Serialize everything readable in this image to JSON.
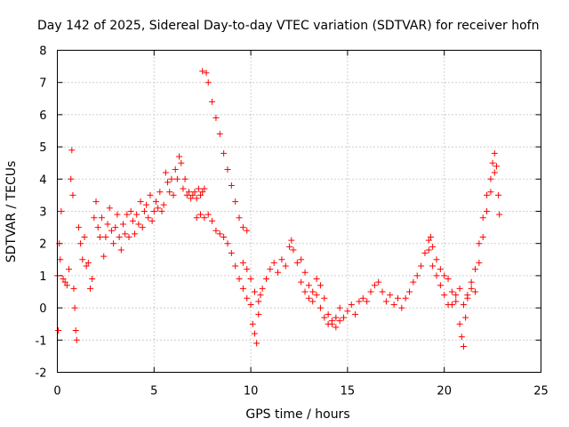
{
  "chart_data": {
    "type": "scatter",
    "title": "Day 142 of 2025, Sidereal Day-to-day VTEC variation (SDTVAR) for receiver hofn",
    "xlabel": "GPS time / hours",
    "ylabel": "SDTVAR / TECUs",
    "xlim": [
      0,
      25
    ],
    "ylim": [
      -2,
      8
    ],
    "xticks": [
      0,
      5,
      10,
      15,
      20,
      25
    ],
    "yticks": [
      -2,
      -1,
      0,
      1,
      2,
      3,
      4,
      5,
      6,
      7,
      8
    ],
    "xtick_labels": [
      "0",
      "5",
      "10",
      "15",
      "20",
      "25"
    ],
    "ytick_labels": [
      "-2",
      "-1",
      "0",
      "1",
      "2",
      "3",
      "4",
      "5",
      "6",
      "7",
      "8"
    ],
    "grid": true,
    "marker": "+",
    "color": "#ff0000",
    "series": [
      {
        "name": "SDTVAR",
        "points": [
          [
            0.0,
            1.0
          ],
          [
            0.05,
            -0.7
          ],
          [
            0.1,
            2.0
          ],
          [
            0.15,
            1.5
          ],
          [
            0.2,
            3.0
          ],
          [
            0.3,
            0.9
          ],
          [
            0.4,
            0.8
          ],
          [
            0.5,
            0.7
          ],
          [
            0.6,
            1.2
          ],
          [
            0.7,
            4.0
          ],
          [
            0.75,
            4.9
          ],
          [
            0.8,
            3.5
          ],
          [
            0.85,
            0.6
          ],
          [
            0.9,
            0.0
          ],
          [
            0.95,
            -0.7
          ],
          [
            1.0,
            -1.0
          ],
          [
            1.1,
            2.5
          ],
          [
            1.2,
            2.0
          ],
          [
            1.3,
            1.5
          ],
          [
            1.4,
            2.2
          ],
          [
            1.5,
            1.3
          ],
          [
            1.6,
            1.4
          ],
          [
            1.7,
            0.6
          ],
          [
            1.8,
            0.9
          ],
          [
            1.9,
            2.8
          ],
          [
            2.0,
            3.3
          ],
          [
            2.1,
            2.5
          ],
          [
            2.2,
            2.2
          ],
          [
            2.3,
            2.8
          ],
          [
            2.4,
            1.6
          ],
          [
            2.5,
            2.2
          ],
          [
            2.6,
            2.6
          ],
          [
            2.7,
            3.1
          ],
          [
            2.8,
            2.4
          ],
          [
            2.9,
            2.0
          ],
          [
            3.0,
            2.5
          ],
          [
            3.1,
            2.9
          ],
          [
            3.2,
            2.2
          ],
          [
            3.3,
            1.8
          ],
          [
            3.4,
            2.6
          ],
          [
            3.5,
            2.3
          ],
          [
            3.6,
            2.9
          ],
          [
            3.7,
            2.2
          ],
          [
            3.8,
            3.0
          ],
          [
            3.9,
            2.7
          ],
          [
            4.0,
            2.3
          ],
          [
            4.1,
            2.9
          ],
          [
            4.2,
            2.6
          ],
          [
            4.3,
            3.3
          ],
          [
            4.4,
            2.5
          ],
          [
            4.5,
            3.0
          ],
          [
            4.6,
            3.2
          ],
          [
            4.7,
            2.8
          ],
          [
            4.8,
            3.5
          ],
          [
            4.9,
            2.7
          ],
          [
            5.0,
            3.0
          ],
          [
            5.1,
            3.3
          ],
          [
            5.2,
            3.1
          ],
          [
            5.3,
            3.6
          ],
          [
            5.4,
            3.0
          ],
          [
            5.5,
            3.2
          ],
          [
            5.6,
            4.2
          ],
          [
            5.7,
            3.9
          ],
          [
            5.8,
            3.6
          ],
          [
            5.9,
            4.0
          ],
          [
            6.0,
            3.5
          ],
          [
            6.1,
            4.3
          ],
          [
            6.2,
            4.0
          ],
          [
            6.3,
            4.7
          ],
          [
            6.4,
            4.5
          ],
          [
            6.5,
            3.7
          ],
          [
            6.6,
            4.0
          ],
          [
            6.7,
            3.5
          ],
          [
            6.8,
            3.6
          ],
          [
            6.9,
            3.4
          ],
          [
            7.0,
            3.5
          ],
          [
            7.1,
            3.6
          ],
          [
            7.2,
            3.4
          ],
          [
            7.3,
            3.7
          ],
          [
            7.4,
            3.5
          ],
          [
            7.5,
            3.6
          ],
          [
            7.6,
            3.7
          ],
          [
            7.2,
            2.8
          ],
          [
            7.4,
            2.9
          ],
          [
            7.6,
            2.8
          ],
          [
            7.8,
            2.9
          ],
          [
            8.0,
            2.7
          ],
          [
            8.2,
            2.4
          ],
          [
            8.4,
            2.3
          ],
          [
            8.6,
            2.2
          ],
          [
            8.8,
            2.0
          ],
          [
            9.0,
            1.7
          ],
          [
            9.2,
            1.3
          ],
          [
            9.4,
            0.9
          ],
          [
            9.6,
            0.6
          ],
          [
            9.8,
            0.3
          ],
          [
            10.0,
            0.1
          ],
          [
            10.1,
            -0.5
          ],
          [
            10.2,
            -0.8
          ],
          [
            10.3,
            -1.1
          ],
          [
            10.4,
            -0.2
          ],
          [
            10.5,
            0.4
          ],
          [
            10.6,
            0.6
          ],
          [
            10.8,
            0.9
          ],
          [
            11.0,
            1.2
          ],
          [
            11.2,
            1.4
          ],
          [
            11.4,
            1.1
          ],
          [
            11.6,
            1.5
          ],
          [
            11.8,
            1.3
          ],
          [
            12.0,
            1.9
          ],
          [
            12.1,
            2.1
          ],
          [
            12.2,
            1.8
          ],
          [
            12.4,
            1.4
          ],
          [
            12.6,
            0.8
          ],
          [
            12.8,
            0.5
          ],
          [
            13.0,
            0.3
          ],
          [
            13.2,
            0.2
          ],
          [
            13.4,
            0.4
          ],
          [
            13.6,
            0.0
          ],
          [
            13.8,
            -0.3
          ],
          [
            14.0,
            -0.5
          ],
          [
            14.2,
            -0.4
          ],
          [
            14.4,
            -0.3
          ],
          [
            14.6,
            0.0
          ],
          [
            14.8,
            -0.3
          ],
          [
            15.0,
            -0.1
          ],
          [
            15.2,
            0.1
          ],
          [
            15.4,
            -0.2
          ],
          [
            15.6,
            0.2
          ],
          [
            15.8,
            0.3
          ],
          [
            16.0,
            0.2
          ],
          [
            16.2,
            0.5
          ],
          [
            16.4,
            0.7
          ],
          [
            16.6,
            0.8
          ],
          [
            16.8,
            0.5
          ],
          [
            17.0,
            0.2
          ],
          [
            17.2,
            0.4
          ],
          [
            17.4,
            0.1
          ],
          [
            17.6,
            0.3
          ],
          [
            17.8,
            0.0
          ],
          [
            18.0,
            0.3
          ],
          [
            18.2,
            0.5
          ],
          [
            18.4,
            0.8
          ],
          [
            18.6,
            1.0
          ],
          [
            18.8,
            1.3
          ],
          [
            19.0,
            1.7
          ],
          [
            19.2,
            2.1
          ],
          [
            19.3,
            2.2
          ],
          [
            19.4,
            1.9
          ],
          [
            19.6,
            1.5
          ],
          [
            19.8,
            1.2
          ],
          [
            20.0,
            1.0
          ],
          [
            20.2,
            0.9
          ],
          [
            20.4,
            0.5
          ],
          [
            20.6,
            0.2
          ],
          [
            20.8,
            -0.5
          ],
          [
            20.9,
            -0.9
          ],
          [
            21.0,
            -1.2
          ],
          [
            21.1,
            -0.3
          ],
          [
            21.2,
            0.3
          ],
          [
            21.4,
            0.8
          ],
          [
            21.6,
            1.2
          ],
          [
            21.8,
            2.0
          ],
          [
            22.0,
            2.8
          ],
          [
            22.2,
            3.5
          ],
          [
            22.4,
            4.0
          ],
          [
            22.5,
            4.5
          ],
          [
            22.6,
            4.8
          ],
          [
            22.7,
            4.4
          ],
          [
            22.8,
            3.5
          ],
          [
            22.85,
            2.9
          ],
          [
            7.5,
            7.35
          ],
          [
            7.7,
            7.3
          ],
          [
            7.8,
            7.0
          ],
          [
            8.0,
            6.4
          ],
          [
            8.2,
            5.9
          ],
          [
            8.4,
            5.4
          ],
          [
            8.6,
            4.8
          ],
          [
            8.8,
            4.3
          ],
          [
            9.0,
            3.8
          ],
          [
            9.2,
            3.3
          ],
          [
            9.4,
            2.8
          ],
          [
            9.6,
            2.5
          ],
          [
            9.8,
            2.4
          ],
          [
            9.6,
            1.4
          ],
          [
            9.8,
            1.2
          ],
          [
            10.0,
            0.9
          ],
          [
            10.2,
            0.5
          ],
          [
            10.4,
            0.2
          ],
          [
            12.6,
            1.5
          ],
          [
            12.8,
            1.1
          ],
          [
            13.0,
            0.7
          ],
          [
            13.2,
            0.5
          ],
          [
            13.4,
            0.9
          ],
          [
            13.6,
            0.7
          ],
          [
            13.8,
            0.3
          ],
          [
            14.0,
            -0.2
          ],
          [
            14.2,
            -0.5
          ],
          [
            14.4,
            -0.6
          ],
          [
            14.6,
            -0.4
          ],
          [
            19.2,
            1.8
          ],
          [
            19.4,
            1.3
          ],
          [
            19.6,
            1.0
          ],
          [
            19.8,
            0.7
          ],
          [
            20.0,
            0.4
          ],
          [
            20.2,
            0.1
          ],
          [
            20.4,
            0.1
          ],
          [
            20.6,
            0.4
          ],
          [
            20.8,
            0.6
          ],
          [
            21.0,
            0.1
          ],
          [
            21.2,
            0.4
          ],
          [
            21.4,
            0.6
          ],
          [
            21.6,
            0.5
          ],
          [
            21.8,
            1.4
          ],
          [
            22.0,
            2.2
          ],
          [
            22.2,
            3.0
          ],
          [
            22.4,
            3.6
          ],
          [
            22.6,
            4.2
          ]
        ]
      }
    ]
  }
}
